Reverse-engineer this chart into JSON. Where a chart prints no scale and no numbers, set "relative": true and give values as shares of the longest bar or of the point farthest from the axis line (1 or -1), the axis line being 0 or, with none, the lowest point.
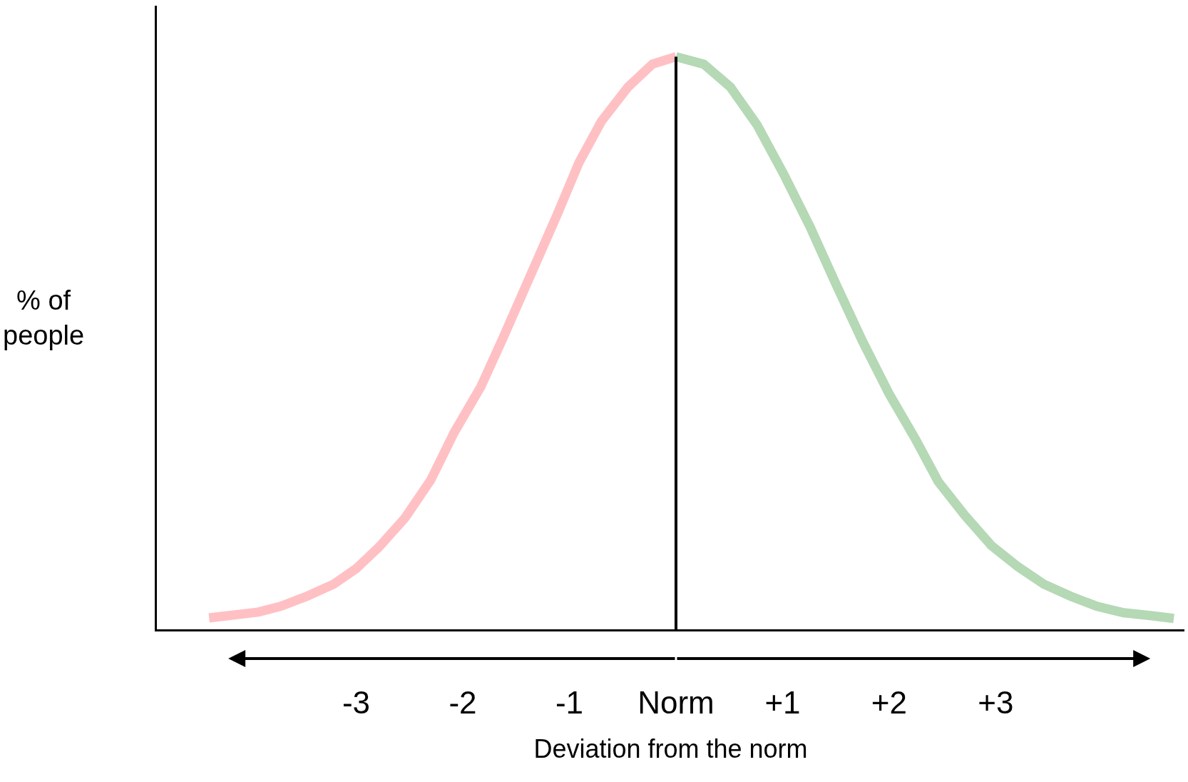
{
  "chart_data": {
    "type": "line",
    "relative": true,
    "xlabel": "Deviation from the norm",
    "ylabel": "% of\npeople",
    "xlim": [
      -4.87,
      4.77
    ],
    "xticks": [
      {
        "value": -3,
        "label": "-3"
      },
      {
        "value": -2,
        "label": "-2"
      },
      {
        "value": -1,
        "label": "-1"
      },
      {
        "value": 0,
        "label": "Norm"
      },
      {
        "value": 1,
        "label": "+1"
      },
      {
        "value": 2,
        "label": "+2"
      },
      {
        "value": 3,
        "label": "+3"
      }
    ],
    "marker": "none",
    "line_style": "solid",
    "ref_lines": [
      {
        "axis": "x",
        "value": 0,
        "label": null,
        "color": "#000000"
      }
    ],
    "series": [
      {
        "color": "#ffc0c4",
        "x": [
          -4.38,
          -3.92,
          -3.71,
          -3.46,
          -3.21,
          -3.0,
          -2.79,
          -2.54,
          -2.3,
          -2.08,
          -1.83,
          -1.62,
          -1.37,
          -1.12,
          -0.91,
          -0.7,
          -0.45,
          -0.22,
          0
        ],
        "values": [
          0.02,
          0.03,
          0.04,
          0.058,
          0.079,
          0.106,
          0.143,
          0.195,
          0.261,
          0.344,
          0.424,
          0.51,
          0.616,
          0.722,
          0.815,
          0.887,
          0.947,
          0.987,
          1
        ]
      },
      {
        "color": "#b5d8b5",
        "x": [
          0,
          0.26,
          0.51,
          0.76,
          1.01,
          1.26,
          1.5,
          1.75,
          2.0,
          2.25,
          2.46,
          2.71,
          2.96,
          3.21,
          3.45,
          3.7,
          3.95,
          4.2,
          4.45,
          4.67
        ],
        "values": [
          1,
          0.987,
          0.947,
          0.881,
          0.795,
          0.702,
          0.603,
          0.503,
          0.411,
          0.331,
          0.258,
          0.199,
          0.146,
          0.109,
          0.079,
          0.058,
          0.04,
          0.029,
          0.024,
          0.019
        ]
      }
    ]
  }
}
